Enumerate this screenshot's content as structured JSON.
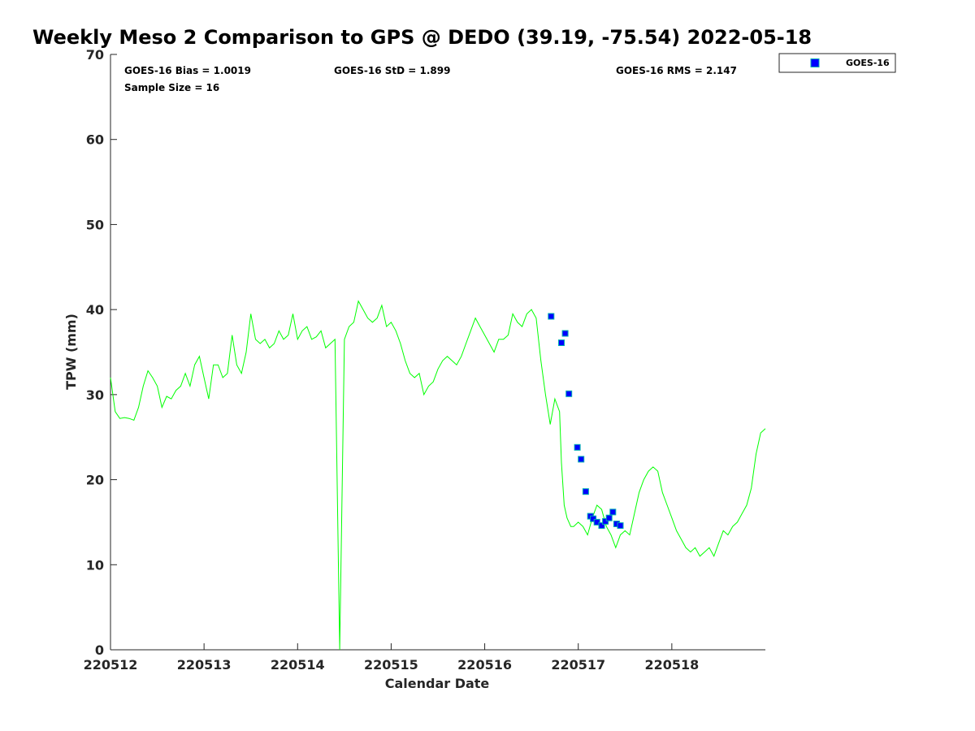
{
  "chart_data": {
    "type": "scatter",
    "title": "Weekly Meso 2 Comparison to GPS @ DEDO (39.19, -75.54) 2022-05-18",
    "xlabel": "Calendar Date",
    "ylabel": "TPW (mm)",
    "xlim": [
      0,
      7
    ],
    "ylim": [
      0,
      70
    ],
    "x_ticks": [
      0,
      1,
      2,
      3,
      4,
      5,
      6
    ],
    "x_tick_labels": [
      "220512",
      "220513",
      "220514",
      "220515",
      "220516",
      "220517",
      "220518"
    ],
    "y_ticks": [
      0,
      10,
      20,
      30,
      40,
      50,
      60,
      70
    ],
    "y_tick_labels": [
      "0",
      "10",
      "20",
      "30",
      "40",
      "50",
      "60",
      "70"
    ],
    "grid": false,
    "legend_position": "outside top-right",
    "stats": {
      "bias": "GOES-16 Bias = 1.0019",
      "std": "GOES-16 StD = 1.899",
      "rms": "GOES-16 RMS = 2.147",
      "sample_size": "Sample Size = 16"
    },
    "series": [
      {
        "name": "GPS",
        "kind": "line",
        "color": "#00ff00",
        "x": [
          0.0,
          0.05,
          0.1,
          0.15,
          0.2,
          0.25,
          0.3,
          0.35,
          0.4,
          0.45,
          0.5,
          0.52,
          0.55,
          0.6,
          0.65,
          0.7,
          0.75,
          0.8,
          0.85,
          0.9,
          0.95,
          1.0,
          1.05,
          1.1,
          1.15,
          1.2,
          1.25,
          1.3,
          1.35,
          1.4,
          1.45,
          1.5,
          1.55,
          1.6,
          1.65,
          1.7,
          1.75,
          1.8,
          1.85,
          1.9,
          1.95,
          2.0,
          2.05,
          2.1,
          2.15,
          2.2,
          2.25,
          2.3,
          2.35,
          2.4,
          2.45,
          2.5,
          2.55,
          2.6,
          2.65,
          2.7,
          2.75,
          2.8,
          2.85,
          2.9,
          2.95,
          3.0,
          3.05,
          3.1,
          3.15,
          3.2,
          3.25,
          3.3,
          3.35,
          3.4,
          3.45,
          3.5,
          3.55,
          3.6,
          3.65,
          3.7,
          3.75,
          3.8,
          3.85,
          3.9,
          3.95,
          4.0,
          4.05,
          4.1,
          4.15,
          4.2,
          4.25,
          4.3,
          4.35,
          4.4,
          4.45,
          4.5,
          4.55,
          4.6,
          4.65,
          4.7,
          4.75,
          4.8,
          4.82,
          4.85,
          4.88,
          4.9,
          4.92,
          4.95,
          5.0,
          5.05,
          5.1,
          5.15,
          5.2,
          5.25,
          5.3,
          5.35,
          5.4,
          5.45,
          5.5,
          5.55,
          5.6,
          5.65,
          5.7,
          5.75,
          5.8,
          5.85,
          5.9,
          5.95,
          6.0,
          6.05,
          6.1,
          6.15,
          6.2,
          6.25,
          6.3,
          6.35,
          6.4,
          6.45,
          6.5,
          6.55,
          6.6,
          6.65,
          6.7,
          6.75,
          6.8,
          6.85,
          6.9,
          6.95,
          7.0
        ],
        "y": [
          32.0,
          28.0,
          27.2,
          27.3,
          27.2,
          27.0,
          28.5,
          31.0,
          32.8,
          32.0,
          31.0,
          30.0,
          28.5,
          29.8,
          29.5,
          30.5,
          31.0,
          32.5,
          31.0,
          33.5,
          34.5,
          32.0,
          29.5,
          33.5,
          33.5,
          32.0,
          32.5,
          37.0,
          33.5,
          32.5,
          35.0,
          39.5,
          36.5,
          36.0,
          36.5,
          35.5,
          36.0,
          37.5,
          36.5,
          37.0,
          39.5,
          36.5,
          37.5,
          38.0,
          36.5,
          36.8,
          37.5,
          35.5,
          36.0,
          36.5,
          0.0,
          36.5,
          38.0,
          38.5,
          41.0,
          40.0,
          39.0,
          38.5,
          39.0,
          40.5,
          38.0,
          38.5,
          37.5,
          36.0,
          34.0,
          32.5,
          32.0,
          32.5,
          30.0,
          31.0,
          31.5,
          33.0,
          34.0,
          34.5,
          34.0,
          33.5,
          34.5,
          36.0,
          37.5,
          39.0,
          38.0,
          37.0,
          36.0,
          35.0,
          36.5,
          36.5,
          37.0,
          39.5,
          38.5,
          38.0,
          39.5,
          40.0,
          39.0,
          34.0,
          30.0,
          26.5,
          29.5,
          28.0,
          22.0,
          17.0,
          15.5,
          15.0,
          14.5,
          14.5,
          15.0,
          14.5,
          13.5,
          15.5,
          17.0,
          16.5,
          14.5,
          13.5,
          12.0,
          13.5,
          14.0,
          13.5,
          16.0,
          18.5,
          20.0,
          21.0,
          21.5,
          21.0,
          18.5,
          17.0,
          15.5,
          14.0,
          13.0,
          12.0,
          11.5,
          12.0,
          11.0,
          11.5,
          12.0,
          11.0,
          12.5,
          14.0,
          13.5,
          14.5,
          15.0,
          16.0,
          17.0,
          19.0,
          23.0,
          25.5,
          26.0
        ]
      },
      {
        "name": "GOES-16",
        "kind": "scatter",
        "color": "#0000ff",
        "edge": "#00b0b0",
        "x": [
          4.71,
          4.82,
          4.86,
          4.9,
          4.99,
          5.03,
          5.08,
          5.13,
          5.16,
          5.2,
          5.25,
          5.29,
          5.33,
          5.37,
          5.41,
          5.45
        ],
        "y": [
          39.2,
          36.1,
          37.2,
          30.1,
          23.8,
          22.4,
          18.6,
          15.7,
          15.4,
          15.0,
          14.6,
          15.1,
          15.5,
          16.2,
          14.8,
          14.6
        ]
      }
    ]
  },
  "legend": {
    "label": "GOES-16"
  }
}
